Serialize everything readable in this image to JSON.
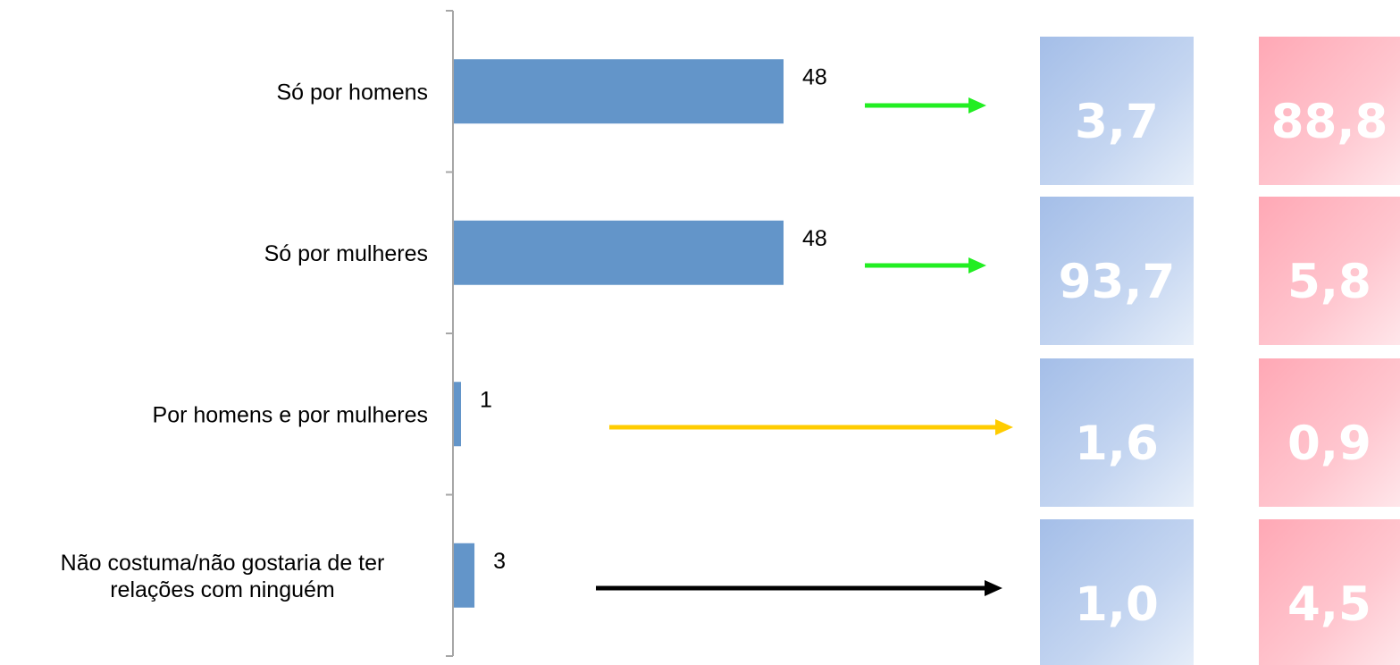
{
  "chart_data": {
    "type": "bar",
    "orientation": "horizontal",
    "categories": [
      "Só por homens",
      "Só por mulheres",
      "Por homens e por mulheres",
      "Não costuma/não gostaria de ter relações com ninguém"
    ],
    "category_lines": [
      [
        "Só por homens"
      ],
      [
        "Só por mulheres"
      ],
      [
        "Por homens e por mulheres"
      ],
      [
        "Não costuma/não gostaria de ter",
        "relações com ninguém"
      ]
    ],
    "values": [
      48,
      48,
      1,
      3
    ],
    "data_labels": [
      "48",
      "48",
      "1",
      "3"
    ],
    "xlim": [
      0,
      100
    ],
    "grid": false,
    "bar_color": "#6395C9",
    "arrows": [
      {
        "color": "#22EE22"
      },
      {
        "color": "#22EE22"
      },
      {
        "color": "#FFCC00"
      },
      {
        "color": "#000000"
      }
    ],
    "blue_boxes": [
      "3,7",
      "93,7",
      "1,6",
      "1,0"
    ],
    "pink_boxes": [
      "88,8",
      "5,8",
      "0,9",
      "4,5"
    ],
    "colors": {
      "blue_box_dark": "#A4BEE8",
      "blue_box_light": "#E6EEF9",
      "pink_box_dark": "#FFA8B5",
      "pink_box_light": "#FFE6EA",
      "axis": "#A6A6A6"
    }
  }
}
